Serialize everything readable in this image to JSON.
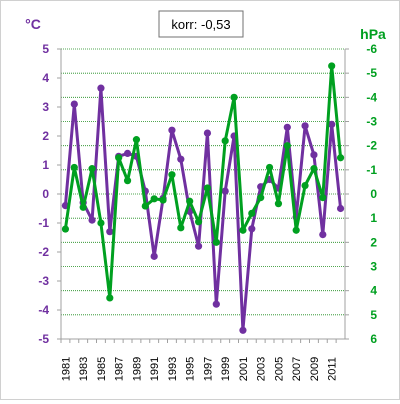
{
  "chart_data": {
    "type": "line",
    "annotation": "korr: -0,53",
    "x": [
      "1981",
      "1982",
      "1983",
      "1984",
      "1985",
      "1986",
      "1987",
      "1988",
      "1989",
      "1990",
      "1991",
      "1992",
      "1993",
      "1994",
      "1995",
      "1996",
      "1997",
      "1998",
      "1999",
      "2000",
      "2001",
      "2002",
      "2003",
      "2004",
      "2005",
      "2006",
      "2007",
      "2008",
      "2009",
      "2010",
      "2011",
      "2012"
    ],
    "x_tick_labels": [
      "1981",
      "1983",
      "1985",
      "1987",
      "1989",
      "1991",
      "1993",
      "1995",
      "1997",
      "1999",
      "2001",
      "2003",
      "2005",
      "2007",
      "2009",
      "2011"
    ],
    "left_axis": {
      "label": "°C",
      "range": [
        -5,
        5
      ],
      "ticks": [
        "-5",
        "-4",
        "-3",
        "-2",
        "-1",
        "0",
        "1",
        "2",
        "3",
        "4",
        "5"
      ],
      "color": "#7030a0"
    },
    "right_axis": {
      "label": "hPa",
      "range": [
        6,
        -6
      ],
      "reversed": true,
      "ticks": [
        "-6",
        "-5",
        "-4",
        "-3",
        "-2",
        "-1",
        "0",
        "1",
        "2",
        "3",
        "4",
        "5",
        "6"
      ],
      "color": "#00a020"
    },
    "grid": "horizontal dotted, green",
    "series": [
      {
        "axis": "left",
        "color": "#7030a0",
        "values": [
          -0.4,
          3.1,
          -0.3,
          -0.9,
          3.65,
          -1.3,
          1.3,
          1.4,
          1.3,
          0.1,
          -2.15,
          -0.15,
          2.2,
          1.2,
          -0.6,
          -1.8,
          2.1,
          -3.8,
          0.1,
          2.0,
          -4.7,
          -1.2,
          0.25,
          0.5,
          0.2,
          2.3,
          -0.8,
          2.35,
          1.35,
          -1.4,
          2.4,
          -0.5
        ]
      },
      {
        "axis": "right",
        "color": "#00a020",
        "values": [
          1.45,
          -1.1,
          0.55,
          -1.05,
          1.2,
          4.3,
          -1.5,
          -0.55,
          -2.25,
          0.5,
          0.2,
          0.25,
          -0.8,
          1.4,
          0.3,
          1.15,
          -0.25,
          2.0,
          -2.2,
          -4.0,
          1.5,
          0.8,
          0.15,
          -1.1,
          0.4,
          -2.0,
          1.5,
          -0.35,
          -1.05,
          0.15,
          -5.3,
          -1.5
        ]
      }
    ]
  }
}
